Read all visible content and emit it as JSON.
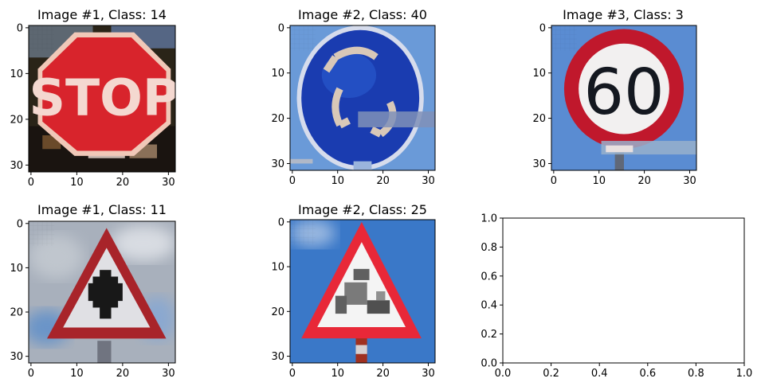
{
  "chart_data": [
    {
      "type": "image",
      "title": "Image #1, Class: 14",
      "content": "stop-sign",
      "xticks": [
        0,
        10,
        20,
        30
      ],
      "yticks": [
        0,
        10,
        20,
        30
      ],
      "xlim": [
        -0.5,
        31.5
      ],
      "ylim": [
        31.5,
        -0.5
      ],
      "sign_text": "STOP",
      "colors": {
        "sign": "#d8242c",
        "border": "#f0c8b8",
        "background": "#2a2418"
      }
    },
    {
      "type": "image",
      "title": "Image #2, Class: 40",
      "content": "roundabout-sign",
      "xticks": [
        0,
        10,
        20,
        30
      ],
      "yticks": [
        0,
        10,
        20,
        30
      ],
      "xlim": [
        -0.5,
        31.5
      ],
      "ylim": [
        31.5,
        -0.5
      ],
      "colors": {
        "sign": "#1a3cb0",
        "border": "#d6dcec",
        "background": "#6a9ad8"
      }
    },
    {
      "type": "image",
      "title": "Image #3, Class: 3",
      "content": "speed-limit-sign",
      "xticks": [
        0,
        10,
        20,
        30
      ],
      "yticks": [
        0,
        10,
        20,
        30
      ],
      "xlim": [
        -0.5,
        31.5
      ],
      "ylim": [
        31.5,
        -0.5
      ],
      "sign_text": "60",
      "colors": {
        "sign": "#c0182c",
        "inner": "#f2f0f0",
        "background": "#5a8cd2"
      }
    },
    {
      "type": "image",
      "title": "Image #1, Class: 11",
      "content": "right-of-way-sign",
      "xticks": [
        0,
        10,
        20,
        30
      ],
      "yticks": [
        0,
        10,
        20,
        30
      ],
      "xlim": [
        -0.5,
        31.5
      ],
      "ylim": [
        31.5,
        -0.5
      ],
      "colors": {
        "sign": "#a8242a",
        "inner": "#e0e0e4",
        "background": "#a8b0bc"
      }
    },
    {
      "type": "image",
      "title": "Image #2, Class: 25",
      "content": "road-work-sign",
      "xticks": [
        0,
        10,
        20,
        30
      ],
      "yticks": [
        0,
        10,
        20,
        30
      ],
      "xlim": [
        -0.5,
        31.5
      ],
      "ylim": [
        31.5,
        -0.5
      ],
      "colors": {
        "sign": "#e82838",
        "inner": "#f4f4f4",
        "background": "#3a78c8"
      }
    },
    {
      "type": "empty",
      "title": "",
      "xticks": [
        "0.0",
        "0.2",
        "0.4",
        "0.6",
        "0.8",
        "1.0"
      ],
      "yticks": [
        "0.0",
        "0.2",
        "0.4",
        "0.6",
        "0.8",
        "1.0"
      ],
      "xlim": [
        0,
        1
      ],
      "ylim": [
        0,
        1
      ]
    }
  ]
}
